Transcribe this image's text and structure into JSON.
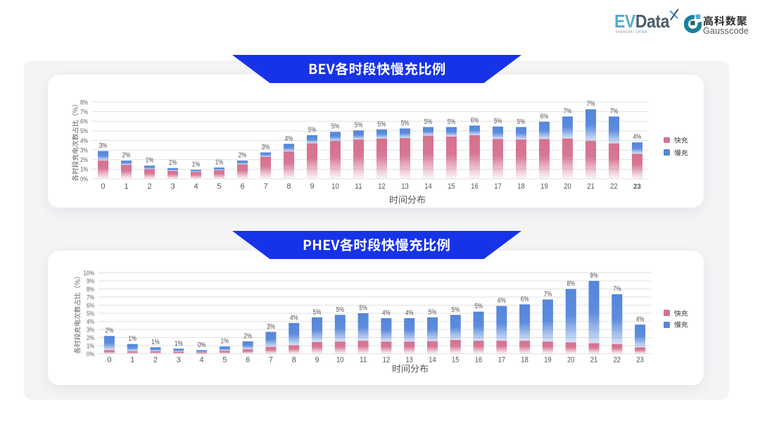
{
  "page": {
    "background": "#ffffff",
    "panel_color": "#f4f4f6",
    "card_color": "#ffffff",
    "banner_color": "#1733e8"
  },
  "header": {
    "evdata_logo": {
      "ev": "EV",
      "data": "Data",
      "ev_color": "#56a9d4",
      "data_color": "#4b5c6e",
      "mark": "x-icon",
      "tagline_left": "SHANGHAI",
      "tagline_right": "CHINA"
    },
    "gausscode_logo": {
      "cn": "高科数聚",
      "en": "Gausscode",
      "icon": "gausscode-ring-icon",
      "icon_color": "#1d7f9c"
    }
  },
  "chart_data": [
    {
      "type": "stacked_bar",
      "title": "BEV各时段快慢充比例",
      "xlabel": "时间分布",
      "ylabel": "各时段充电次数占比（%）",
      "ylim": [
        0,
        8
      ],
      "ytick_labels": [
        "0%",
        "1%",
        "2%",
        "3%",
        "4%",
        "5%",
        "6%",
        "7%",
        "8%"
      ],
      "categories": [
        "0",
        "1",
        "2",
        "3",
        "4",
        "5",
        "6",
        "7",
        "8",
        "9",
        "10",
        "11",
        "12",
        "13",
        "14",
        "15",
        "16",
        "17",
        "18",
        "19",
        "20",
        "21",
        "22",
        "23"
      ],
      "series": [
        {
          "name": "快充",
          "color": "#d5718e",
          "values": [
            1.9,
            1.45,
            1.0,
            0.82,
            0.72,
            0.9,
            1.5,
            2.3,
            2.85,
            3.7,
            3.95,
            4.1,
            4.2,
            4.25,
            4.5,
            4.4,
            4.55,
            4.15,
            4.1,
            4.15,
            4.2,
            3.95,
            3.7,
            2.6
          ]
        },
        {
          "name": "慢充",
          "color": "#5586db",
          "values": [
            1.0,
            0.45,
            0.38,
            0.3,
            0.22,
            0.28,
            0.4,
            0.45,
            0.8,
            0.85,
            0.95,
            0.95,
            0.95,
            1.0,
            0.9,
            1.0,
            1.0,
            1.3,
            1.3,
            1.8,
            2.3,
            3.3,
            2.8,
            1.2
          ]
        }
      ],
      "total_labels": [
        "3%",
        "2%",
        "1%",
        "1%",
        "1%",
        "1%",
        "2%",
        "3%",
        "4%",
        "5%",
        "5%",
        "5%",
        "5%",
        "5%",
        "5%",
        "5%",
        "6%",
        "5%",
        "5%",
        "6%",
        "7%",
        "7%",
        "7%",
        "4%"
      ],
      "legend": [
        "快充",
        "慢充"
      ],
      "legend_position": "right",
      "grid": true
    },
    {
      "type": "stacked_bar",
      "title": "PHEV各时段快慢充比例",
      "xlabel": "时间分布",
      "ylabel": "各时段充电次数占比（%）",
      "ylim": [
        0,
        10
      ],
      "ytick_labels": [
        "0%",
        "1%",
        "2%",
        "3%",
        "4%",
        "5%",
        "6%",
        "7%",
        "8%",
        "9%",
        "10%"
      ],
      "categories": [
        "0",
        "1",
        "2",
        "3",
        "4",
        "5",
        "6",
        "7",
        "8",
        "9",
        "10",
        "11",
        "12",
        "13",
        "14",
        "15",
        "16",
        "17",
        "18",
        "19",
        "20",
        "21",
        "22",
        "23"
      ],
      "series": [
        {
          "name": "快充",
          "color": "#d5718e",
          "values": [
            0.45,
            0.3,
            0.3,
            0.25,
            0.17,
            0.36,
            0.55,
            0.85,
            1.05,
            1.45,
            1.5,
            1.6,
            1.5,
            1.5,
            1.55,
            1.7,
            1.6,
            1.6,
            1.6,
            1.5,
            1.4,
            1.3,
            1.2,
            0.8
          ]
        },
        {
          "name": "慢充",
          "color": "#5586db",
          "values": [
            1.75,
            0.9,
            0.5,
            0.38,
            0.28,
            0.54,
            0.98,
            1.85,
            2.75,
            3.05,
            3.3,
            3.4,
            2.9,
            2.9,
            2.95,
            3.1,
            3.6,
            4.3,
            4.5,
            5.2,
            6.6,
            7.7,
            6.15,
            2.8
          ]
        }
      ],
      "total_labels": [
        "2%",
        "1%",
        "1%",
        "1%",
        "0%",
        "1%",
        "2%",
        "3%",
        "4%",
        "5%",
        "5%",
        "5%",
        "4%",
        "4%",
        "5%",
        "5%",
        "5%",
        "6%",
        "6%",
        "7%",
        "8%",
        "9%",
        "7%",
        "4%"
      ],
      "legend": [
        "快充",
        "慢充"
      ],
      "legend_position": "right",
      "grid": true
    }
  ]
}
